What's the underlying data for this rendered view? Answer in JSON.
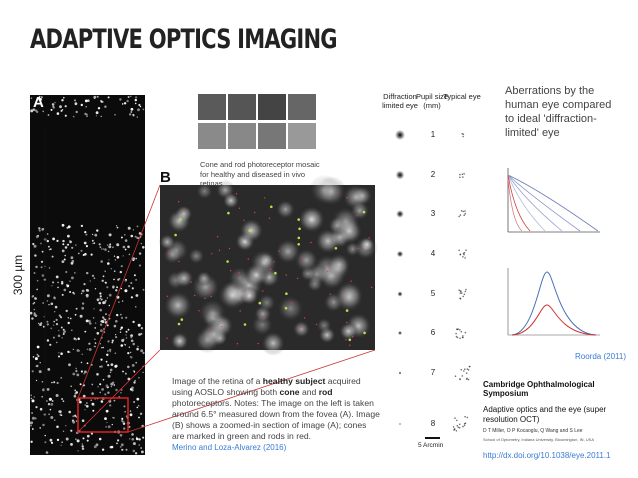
{
  "title": "ADAPTIVE OPTICS IMAGING",
  "panel_a": {
    "label": "A",
    "scale": "300 µm"
  },
  "panel_b": {
    "label": "B"
  },
  "mosaic_caption": "Cone and rod photoreceptor mosaic for healthy and diseased in vivo retinas.",
  "caption_parts": [
    {
      "text": "Image of the retina of a ",
      "bold": false
    },
    {
      "text": "healthy subject",
      "bold": true
    },
    {
      "text": " acquired using AOSLO showing both ",
      "bold": false
    },
    {
      "text": "cone",
      "bold": true
    },
    {
      "text": " and ",
      "bold": false
    },
    {
      "text": "rod",
      "bold": true
    },
    {
      "text": " photoreceptors. Notes: The image on the left is taken around 6.5° measured down from the fovea (A). Image (B) shows a zoomed-in section of image (A); cones are marked in green and rods in red.",
      "bold": false
    }
  ],
  "caption_source": "Merino and Loza-Alvarez (2016)",
  "psf_table": {
    "headers": [
      "Diffraction limited eye",
      "Pupil size (mm)",
      "Typical eye"
    ],
    "pupil_sizes": [
      1,
      2,
      3,
      4,
      5,
      6,
      7,
      8
    ],
    "scale_label": "5 Arcmin"
  },
  "aberration_text": "Aberrations by the human eye compared to ideal 'diffraction-limited' eye",
  "aberration_source": "Roorda (2011)",
  "citation": {
    "journal": "Cambridge Ophthalmological Symposium",
    "title": "Adaptive optics and the eye (super resolution OCT)",
    "authors": "D T Miller, O P Kocaoglu, Q Wang and S Lee",
    "affiliation": "School of Optometry, Indiana University, Bloomington, IN, USA",
    "doi": "http://dx.doi.org/10.1038/eye.2011.1"
  }
}
